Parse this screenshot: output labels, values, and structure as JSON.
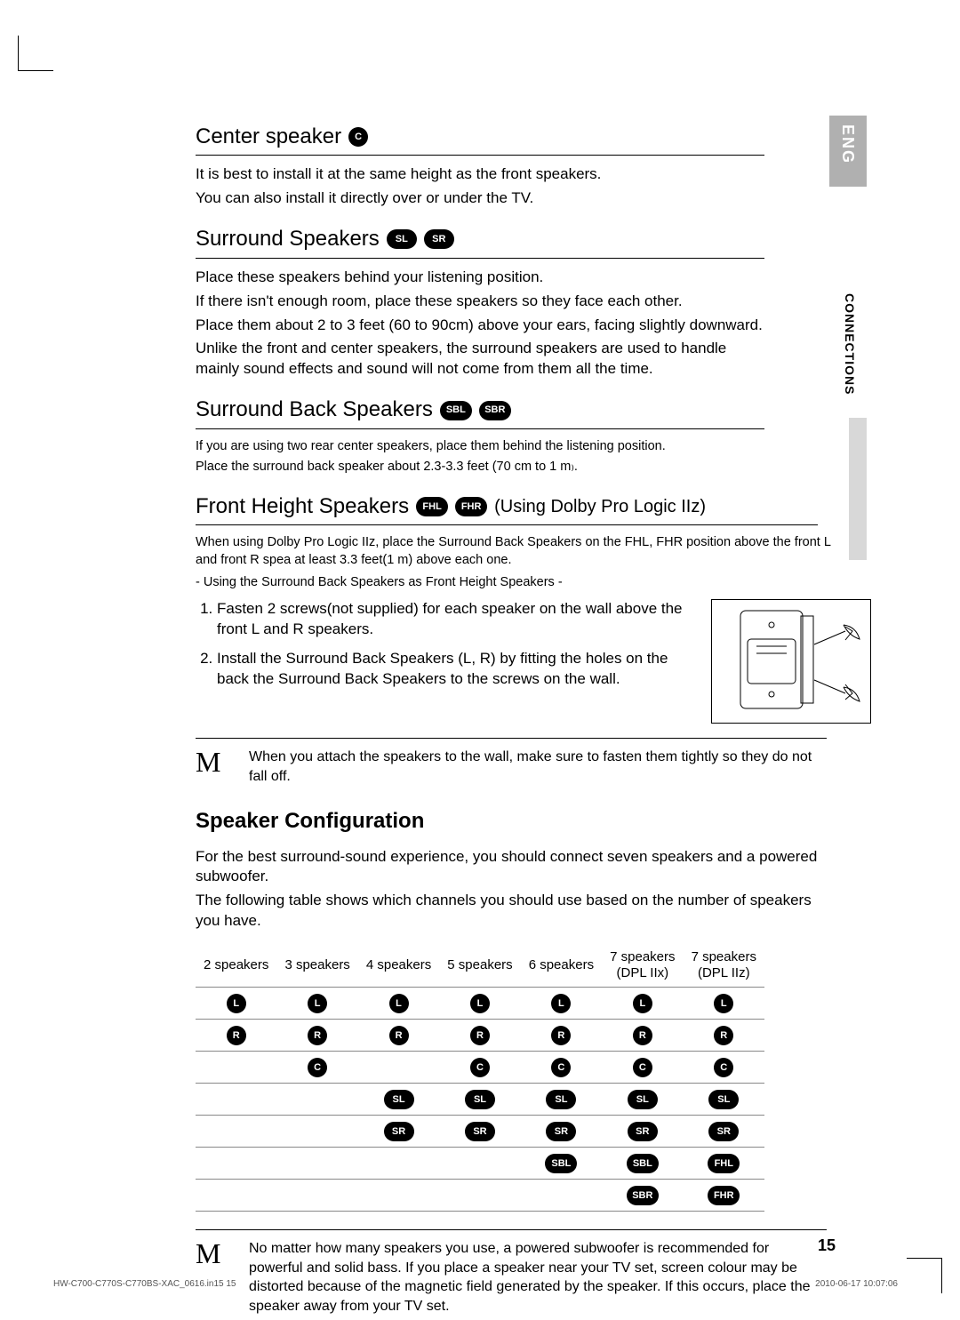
{
  "lang_tab": "ENG",
  "side_label": "CONNECTIONS",
  "page_number": "15",
  "footer_left": "HW-C700-C770S-C770BS-XAC_0616.in15   15",
  "footer_right": "2010-06-17   10:07:06",
  "icons": {
    "C": "C",
    "SL": "SL",
    "SR": "SR",
    "SBL": "SBL",
    "SBR": "SBR",
    "FHL": "FHL",
    "FHR": "FHR",
    "L": "L",
    "R": "R"
  },
  "sections": {
    "center": {
      "title": "Center speaker",
      "lines": [
        "It is best to install it at the same height as the front speakers.",
        "You can also install it directly over or under the TV."
      ]
    },
    "surround": {
      "title": "Surround Speakers",
      "lines": [
        "Place these speakers behind your listening position.",
        "If there isn't enough room, place these speakers so they face each other.",
        "Place them about 2 to 3 feet (60 to 90cm) above your ears, facing slightly downward.",
        "Unlike the front and center speakers, the surround speakers are used to handle mainly sound effects and sound will not come from them all the time."
      ]
    },
    "surround_back": {
      "title": "Surround Back Speakers",
      "lines": [
        "If you are using two rear center speakers, place them behind the listening position.",
        "Place the surround back speaker about 2.3-3.3 feet (70 cm to 1 m₎."
      ]
    },
    "front_height": {
      "title": "Front Height Speakers",
      "suffix": "(Using Dolby Pro Logic IIz)",
      "intro": "When using Dolby Pro Logic IIz, place the Surround Back Speakers on the FHL, FHR position above the front L and front R spea at least 3.3 feet(1 m) above each one.",
      "sub": "- Using the Surround Back Speakers as Front Height Speakers -",
      "ol": [
        "Fasten 2 screws(not supplied) for each speaker on the wall above the front L and R speakers.",
        "Install the Surround Back Speakers (L, R) by ﬁtting the holes on the back the Surround Back Speakers to the screws on the wall."
      ]
    }
  },
  "note1": "When you attach the speakers to the wall, make sure to fasten them tightly so they do not fall off.",
  "config": {
    "title": "Speaker Conﬁguration",
    "lines": [
      "For the best surround-sound experience, you should connect seven speakers and a powered subwoofer.",
      "The following table shows which channels you should use based on the number of speakers you have."
    ],
    "headers": [
      "2 speakers",
      "3  speakers",
      "4 speakers",
      "5 speakers",
      "6 speakers",
      "7 speakers\n(DPL IIx)",
      "7 speakers\n(DPL IIz)"
    ],
    "rows": [
      [
        "L",
        "L",
        "L",
        "L",
        "L",
        "L",
        "L"
      ],
      [
        "R",
        "R",
        "R",
        "R",
        "R",
        "R",
        "R"
      ],
      [
        "",
        "C",
        "",
        "C",
        "C",
        "C",
        "C"
      ],
      [
        "",
        "",
        "SL",
        "SL",
        "SL",
        "SL",
        "SL"
      ],
      [
        "",
        "",
        "SR",
        "SR",
        "SR",
        "SR",
        "SR"
      ],
      [
        "",
        "",
        "",
        "",
        "SBL",
        "SBL",
        "FHL"
      ],
      [
        "",
        "",
        "",
        "",
        "",
        "SBR",
        "FHR"
      ]
    ]
  },
  "note2": "No matter how many speakers you use, a powered subwoofer is recommended for powerful and solid bass. If you place a speaker near your TV set, screen colour may be distorted because of the magnetic ﬁeld generated by the speaker. If this occurs, place the speaker away from your TV set.",
  "note_mark": "M",
  "colors": {
    "text": "#000000",
    "bg": "#ffffff",
    "tab_bg": "#b0b0b0",
    "side_bar": "#d8d8d8",
    "rule": "#888888"
  }
}
